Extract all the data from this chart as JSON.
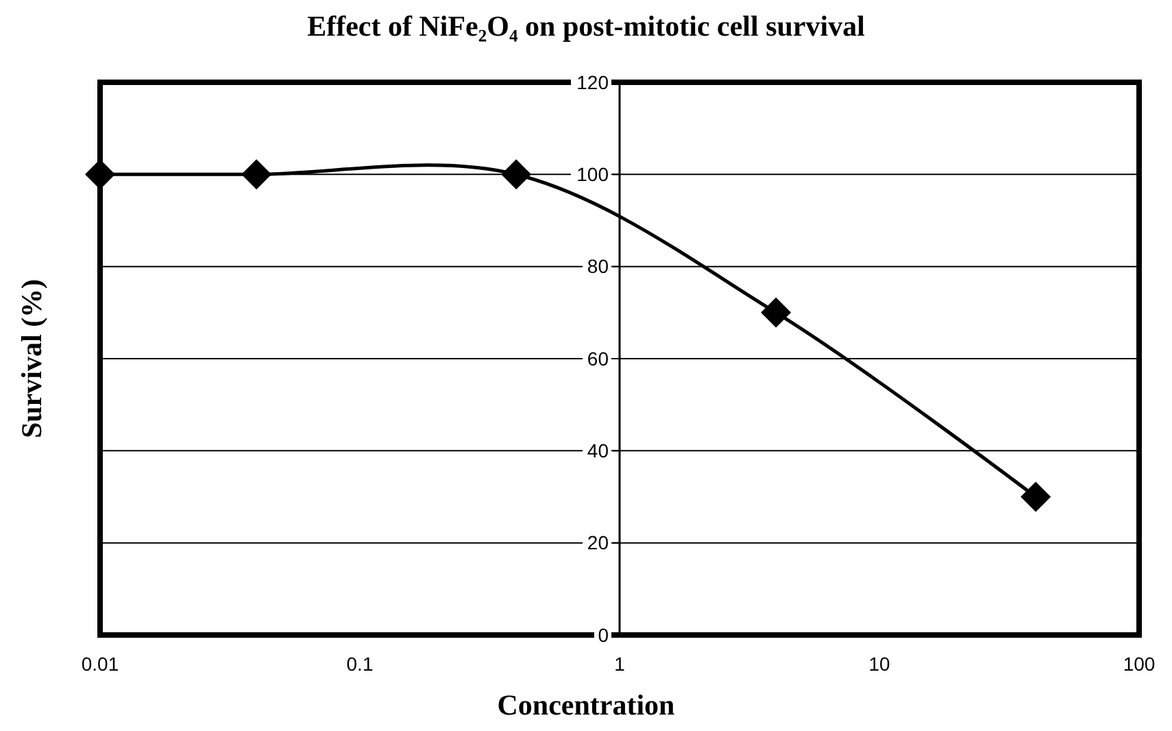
{
  "chart_data": {
    "type": "line",
    "title": "Effect of NiFe₂O₄ on post-mitotic cell survival",
    "xlabel": "Concentration",
    "ylabel": "Survival (%)",
    "x": [
      0.01,
      0.04,
      0.4,
      4,
      40
    ],
    "series": [
      {
        "color": "#000000",
        "values": [
          100,
          100,
          100,
          70,
          30
        ]
      }
    ],
    "log": "x",
    "xlim": [
      0.01,
      100
    ],
    "xticks": [
      0.01,
      0.1,
      1,
      10,
      100
    ],
    "ylim": [
      0,
      120
    ],
    "yticks": [
      0,
      20,
      40,
      60,
      80,
      100,
      120
    ],
    "grid": "y",
    "marker": "diamond",
    "line_style": "solid"
  }
}
